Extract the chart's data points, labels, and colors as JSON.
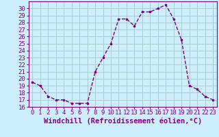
{
  "hours": [
    0,
    1,
    2,
    3,
    4,
    5,
    6,
    7,
    8,
    9,
    10,
    11,
    12,
    13,
    14,
    15,
    16,
    17,
    18,
    19,
    20,
    21,
    22,
    23
  ],
  "values": [
    19.5,
    19.0,
    17.5,
    17.0,
    17.0,
    16.5,
    16.5,
    16.5,
    21.0,
    23.0,
    25.0,
    28.5,
    28.5,
    27.5,
    29.5,
    29.5,
    30.0,
    30.5,
    28.5,
    25.5,
    19.0,
    18.5,
    17.5,
    17.0
  ],
  "line_color": "#800080",
  "marker": "s",
  "marker_size": 2,
  "bg_color": "#cceeff",
  "grid_color": "#aacccc",
  "xlabel": "Windchill (Refroidissement éolien,°C)",
  "xlim": [
    -0.5,
    23.5
  ],
  "ylim": [
    16,
    31
  ],
  "yticks": [
    16,
    17,
    18,
    19,
    20,
    21,
    22,
    23,
    24,
    25,
    26,
    27,
    28,
    29,
    30
  ],
  "xtick_labels": [
    "0",
    "1",
    "2",
    "3",
    "4",
    "5",
    "6",
    "7",
    "8",
    "9",
    "10",
    "11",
    "12",
    "13",
    "14",
    "15",
    "16",
    "17",
    "18",
    "19",
    "20",
    "21",
    "22",
    "23"
  ],
  "font_color": "#800080",
  "tick_fontsize": 6.5,
  "xlabel_fontsize": 7.5,
  "linewidth": 1.0
}
